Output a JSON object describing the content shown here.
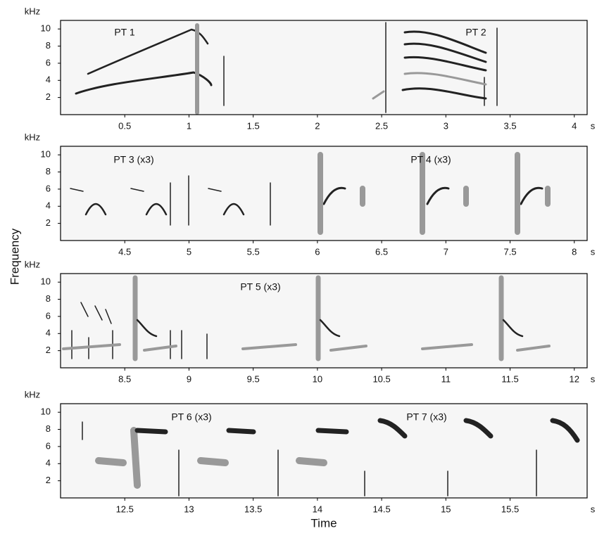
{
  "figure": {
    "xlabel": "Time",
    "ylabel": "Frequency"
  },
  "chart_data": [
    {
      "type": "spectrogram",
      "y_unit": "kHz",
      "x_unit": "s",
      "xlim": [
        0,
        4.1
      ],
      "xticks": [
        0.5,
        1,
        1.5,
        2,
        2.5,
        3,
        3.5,
        4
      ],
      "ylim": [
        0,
        11
      ],
      "yticks": [
        2,
        4,
        6,
        8,
        10
      ],
      "annotations": [
        "PT 1",
        "PT 2"
      ]
    },
    {
      "type": "spectrogram",
      "y_unit": "kHz",
      "x_unit": "s",
      "xlim": [
        4.0,
        8.1
      ],
      "xticks": [
        4.5,
        5,
        5.5,
        6,
        6.5,
        7,
        7.5,
        8
      ],
      "ylim": [
        0,
        11
      ],
      "yticks": [
        2,
        4,
        6,
        8,
        10
      ],
      "annotations": [
        "PT 3 (x3)",
        "PT 4 (x3)"
      ]
    },
    {
      "type": "spectrogram",
      "y_unit": "kHz",
      "x_unit": "s",
      "xlim": [
        8.0,
        12.1
      ],
      "xticks": [
        8.5,
        9,
        9.5,
        10,
        10.5,
        11,
        11.5,
        12
      ],
      "ylim": [
        0,
        11
      ],
      "yticks": [
        2,
        4,
        6,
        8,
        10
      ],
      "annotations": [
        "PT 5 (x3)"
      ]
    },
    {
      "type": "spectrogram",
      "y_unit": "kHz",
      "x_unit": "s",
      "xlim": [
        12.0,
        16.1
      ],
      "xticks": [
        12.5,
        13,
        13.5,
        14,
        14.5,
        15,
        15.5
      ],
      "ylim": [
        0,
        11
      ],
      "yticks": [
        2,
        4,
        6,
        8,
        10
      ],
      "annotations": [
        "PT 6 (x3)",
        "PT 7 (x3)"
      ]
    }
  ]
}
